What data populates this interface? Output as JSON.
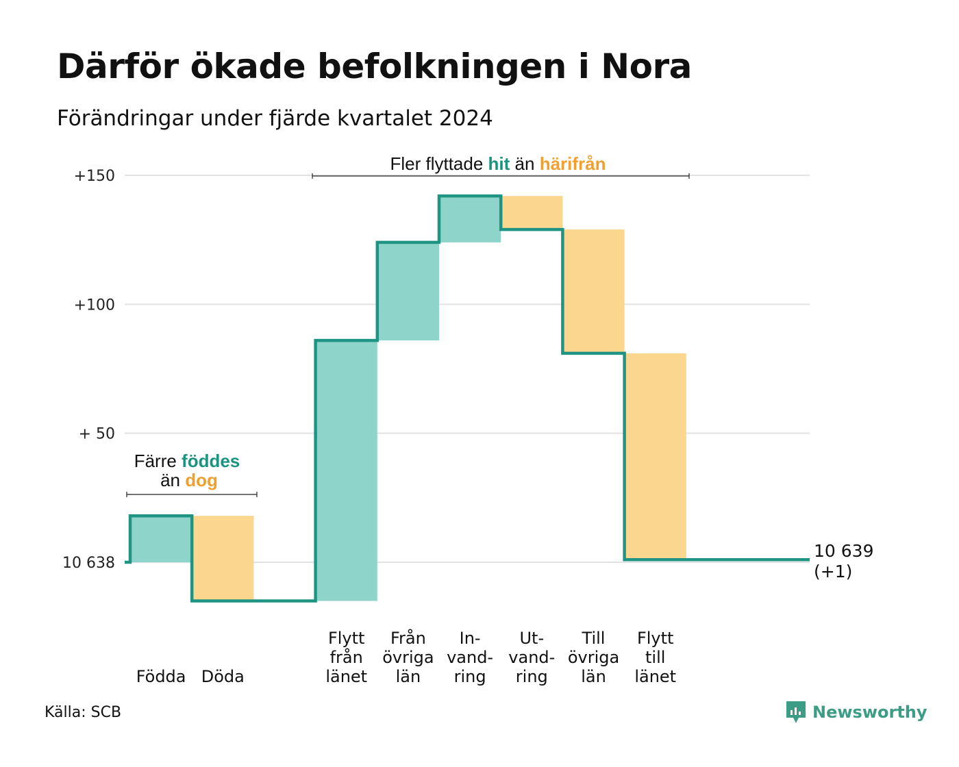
{
  "title": "Därför ökade befolkningen i Nora",
  "subtitle": "Förändringar under fjärde kvartalet 2024",
  "source": "Källa: SCB",
  "brand": "Newsworthy",
  "colors": {
    "line": "#1f9482",
    "increase": "#8fd4cb",
    "decrease": "#fbd68e",
    "grid": "#e2e2e2",
    "teal_text": "#199481",
    "orange_text": "#f0a02e"
  },
  "chart_data": {
    "type": "waterfall",
    "baseline_value": 10638,
    "y_tick_labels": [
      "+150",
      "+100",
      "+ 50",
      "10 638"
    ],
    "y_ticks": [
      150,
      100,
      50,
      0
    ],
    "ylim": [
      -18,
      150
    ],
    "steps": [
      {
        "label": [
          "Födda"
        ],
        "change": 18,
        "kind": "in"
      },
      {
        "label": [
          "Döda"
        ],
        "change": -33,
        "kind": "out"
      },
      {
        "label": [],
        "change": 0,
        "kind": "none"
      },
      {
        "label": [
          "Flytt",
          "från",
          "länet"
        ],
        "change": 101,
        "kind": "in"
      },
      {
        "label": [
          "Från",
          "övriga",
          "län"
        ],
        "change": 38,
        "kind": "in"
      },
      {
        "label": [
          "In-",
          "vand-",
          "ring"
        ],
        "change": 18,
        "kind": "in"
      },
      {
        "label": [
          "Ut-",
          "vand-",
          "ring"
        ],
        "change": -13,
        "kind": "out"
      },
      {
        "label": [
          "Till",
          "övriga",
          "län"
        ],
        "change": -48,
        "kind": "out"
      },
      {
        "label": [
          "Flytt",
          "till",
          "länet"
        ],
        "change": -80,
        "kind": "out"
      },
      {
        "label": [],
        "change": 0,
        "kind": "none"
      }
    ],
    "end_label": "10 639",
    "end_change": "(+1)",
    "annotations": [
      {
        "parts": [
          {
            "text": "Färre ",
            "style": "plain"
          },
          {
            "text": "föddes",
            "style": "teal"
          }
        ],
        "line2": [
          {
            "text": "än ",
            "style": "plain"
          },
          {
            "text": "dog",
            "style": "orange"
          }
        ]
      },
      {
        "parts": [
          {
            "text": "Fler flyttade ",
            "style": "plain"
          },
          {
            "text": "hit",
            "style": "teal"
          },
          {
            "text": " än ",
            "style": "plain"
          },
          {
            "text": "härifrån",
            "style": "orange"
          }
        ]
      }
    ]
  }
}
